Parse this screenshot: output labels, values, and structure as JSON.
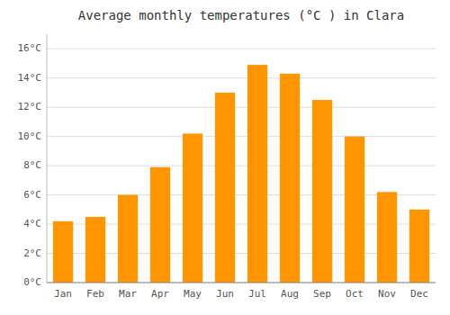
{
  "chart_data": {
    "type": "bar",
    "title": "Average monthly temperatures (°C ) in Clara",
    "categories": [
      "Jan",
      "Feb",
      "Mar",
      "Apr",
      "May",
      "Jun",
      "Jul",
      "Aug",
      "Sep",
      "Oct",
      "Nov",
      "Dec"
    ],
    "values": [
      4.2,
      4.5,
      6.0,
      7.9,
      10.2,
      13.0,
      14.9,
      14.3,
      12.5,
      10.0,
      6.2,
      5.0
    ],
    "color": "#FF9500",
    "ylim": [
      0,
      17
    ],
    "yticks": [
      {
        "value": 0,
        "label": "0°C"
      },
      {
        "value": 2,
        "label": "2°C"
      },
      {
        "value": 4,
        "label": "4°C"
      },
      {
        "value": 6,
        "label": "6°C"
      },
      {
        "value": 8,
        "label": "8°C"
      },
      {
        "value": 10,
        "label": "10°C"
      },
      {
        "value": 12,
        "label": "12°C"
      },
      {
        "value": 14,
        "label": "14°C"
      },
      {
        "value": 16,
        "label": "16°C"
      }
    ],
    "grid": true
  }
}
